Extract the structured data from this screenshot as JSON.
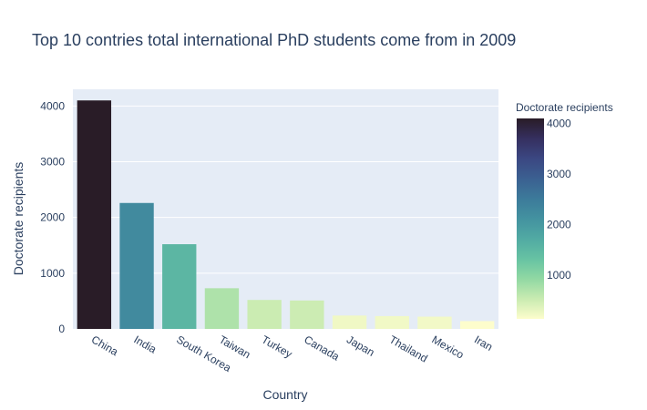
{
  "chart_data": {
    "type": "bar",
    "title": "Top 10 contries total international PhD students come from in 2009",
    "xlabel": "Country",
    "ylabel": "Doctorate recipients",
    "categories": [
      "China",
      "India",
      "South Korea",
      "Taiwan",
      "Turkey",
      "Canada",
      "Japan",
      "Thailand",
      "Mexico",
      "Iran"
    ],
    "values": [
      4100,
      2260,
      1520,
      730,
      520,
      510,
      240,
      230,
      220,
      140
    ],
    "ylim": [
      0,
      4300
    ],
    "yticks": [
      "0",
      "1000",
      "2000",
      "3000",
      "4000"
    ],
    "grid": true,
    "colorbar": {
      "title": "Doctorate recipients",
      "ticks": [
        "1000",
        "2000",
        "3000",
        "4000"
      ],
      "range": [
        140,
        4100
      ],
      "colorscale": [
        "#fdfdcc",
        "#c9ebb1",
        "#91d8a3",
        "#66c2a3",
        "#51aaa3",
        "#4392a0",
        "#3c7a9a",
        "#3b6091",
        "#3b4782",
        "#352f5f",
        "#291c27"
      ]
    }
  }
}
